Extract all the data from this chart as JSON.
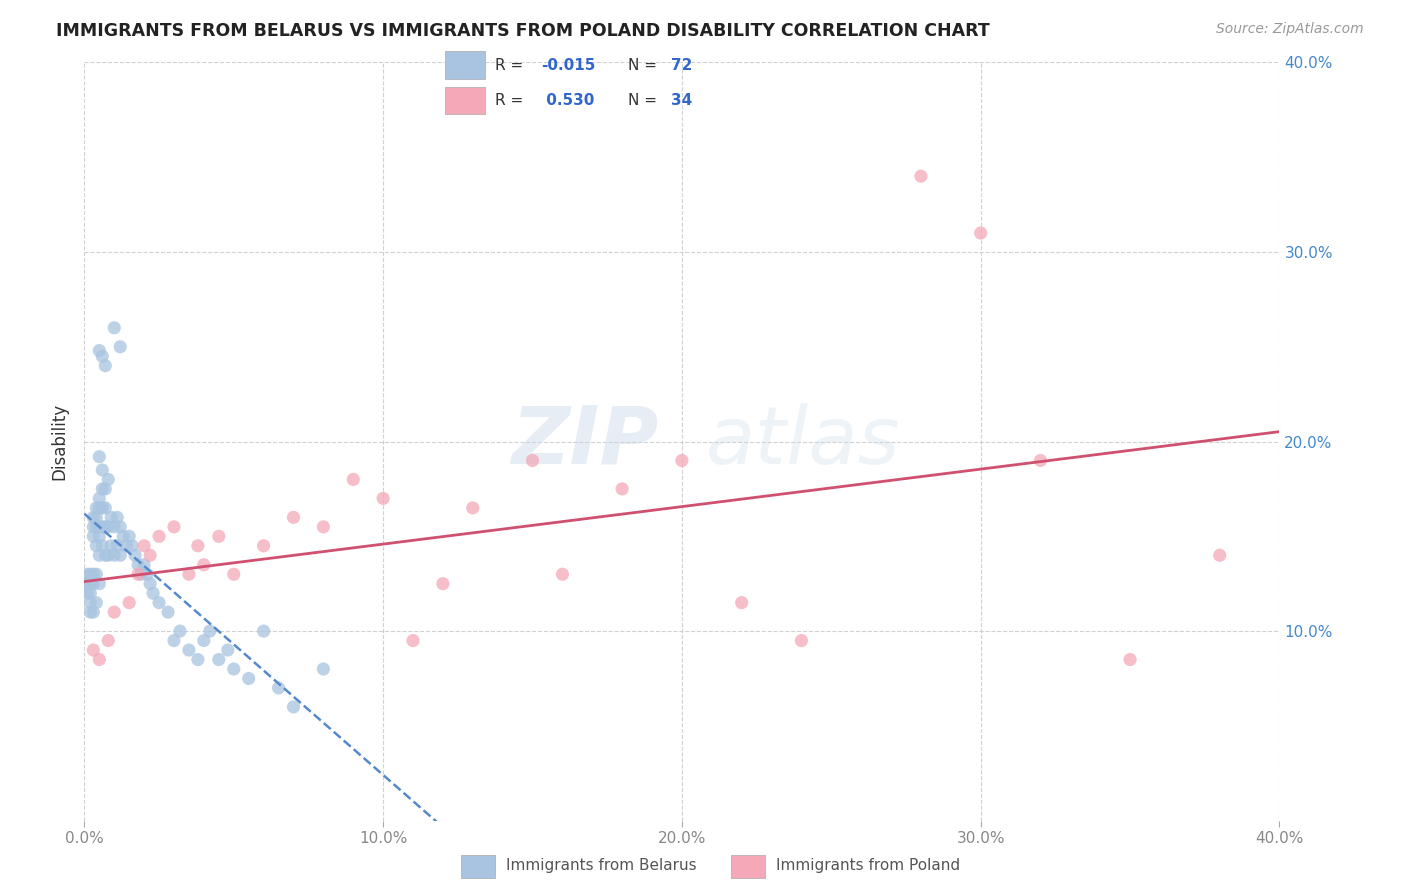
{
  "title": "IMMIGRANTS FROM BELARUS VS IMMIGRANTS FROM POLAND DISABILITY CORRELATION CHART",
  "source": "Source: ZipAtlas.com",
  "ylabel": "Disability",
  "xlim": [
    0.0,
    0.4
  ],
  "ylim": [
    0.0,
    0.4
  ],
  "x_ticks": [
    0.0,
    0.1,
    0.2,
    0.3,
    0.4
  ],
  "y_ticks": [
    0.1,
    0.2,
    0.3,
    0.4
  ],
  "x_tick_labels": [
    "0.0%",
    "10.0%",
    "20.0%",
    "30.0%",
    "40.0%"
  ],
  "y_tick_labels": [
    "10.0%",
    "20.0%",
    "30.0%",
    "40.0%"
  ],
  "legend_r_belarus": "-0.015",
  "legend_n_belarus": "72",
  "legend_r_poland": "0.530",
  "legend_n_poland": "34",
  "color_belarus": "#a8c4e0",
  "color_poland": "#f4a8b8",
  "trendline_belarus_color": "#5588cc",
  "trendline_poland_color": "#d05070",
  "background_color": "#ffffff",
  "watermark_zip": "ZIP",
  "watermark_atlas": "atlas",
  "belarus_x": [
    0.001,
    0.001,
    0.001,
    0.002,
    0.002,
    0.002,
    0.002,
    0.002,
    0.003,
    0.003,
    0.003,
    0.003,
    0.003,
    0.003,
    0.004,
    0.004,
    0.004,
    0.004,
    0.004,
    0.004,
    0.005,
    0.005,
    0.005,
    0.005,
    0.005,
    0.005,
    0.006,
    0.006,
    0.006,
    0.006,
    0.007,
    0.007,
    0.007,
    0.007,
    0.008,
    0.008,
    0.008,
    0.009,
    0.009,
    0.01,
    0.01,
    0.011,
    0.011,
    0.012,
    0.012,
    0.013,
    0.014,
    0.015,
    0.016,
    0.017,
    0.018,
    0.019,
    0.02,
    0.021,
    0.022,
    0.023,
    0.025,
    0.028,
    0.03,
    0.032,
    0.035,
    0.038,
    0.04,
    0.042,
    0.045,
    0.048,
    0.05,
    0.055,
    0.06,
    0.065,
    0.07,
    0.08
  ],
  "belarus_y": [
    0.13,
    0.125,
    0.12,
    0.13,
    0.125,
    0.12,
    0.115,
    0.11,
    0.16,
    0.155,
    0.15,
    0.13,
    0.125,
    0.11,
    0.165,
    0.16,
    0.155,
    0.145,
    0.13,
    0.115,
    0.17,
    0.165,
    0.155,
    0.15,
    0.14,
    0.125,
    0.175,
    0.165,
    0.155,
    0.145,
    0.175,
    0.165,
    0.155,
    0.14,
    0.18,
    0.155,
    0.14,
    0.16,
    0.145,
    0.155,
    0.14,
    0.16,
    0.145,
    0.155,
    0.14,
    0.15,
    0.145,
    0.15,
    0.145,
    0.14,
    0.135,
    0.13,
    0.135,
    0.13,
    0.125,
    0.12,
    0.115,
    0.11,
    0.095,
    0.1,
    0.09,
    0.085,
    0.095,
    0.1,
    0.085,
    0.09,
    0.08,
    0.075,
    0.1,
    0.07,
    0.06,
    0.08
  ],
  "belarus_extra_y": [
    0.248,
    0.245,
    0.24,
    0.26,
    0.25,
    0.192,
    0.185
  ],
  "belarus_extra_x": [
    0.005,
    0.006,
    0.007,
    0.01,
    0.012,
    0.005,
    0.006
  ],
  "poland_x": [
    0.003,
    0.005,
    0.008,
    0.01,
    0.015,
    0.018,
    0.02,
    0.022,
    0.025,
    0.03,
    0.035,
    0.038,
    0.04,
    0.045,
    0.05,
    0.06,
    0.07,
    0.08,
    0.09,
    0.1,
    0.11,
    0.12,
    0.13,
    0.15,
    0.16,
    0.18,
    0.2,
    0.22,
    0.24,
    0.28,
    0.3,
    0.32,
    0.35,
    0.38
  ],
  "poland_y": [
    0.09,
    0.085,
    0.095,
    0.11,
    0.115,
    0.13,
    0.145,
    0.14,
    0.15,
    0.155,
    0.13,
    0.145,
    0.135,
    0.15,
    0.13,
    0.145,
    0.16,
    0.155,
    0.18,
    0.17,
    0.095,
    0.125,
    0.165,
    0.19,
    0.13,
    0.175,
    0.19,
    0.115,
    0.095,
    0.34,
    0.31,
    0.19,
    0.085,
    0.14
  ]
}
